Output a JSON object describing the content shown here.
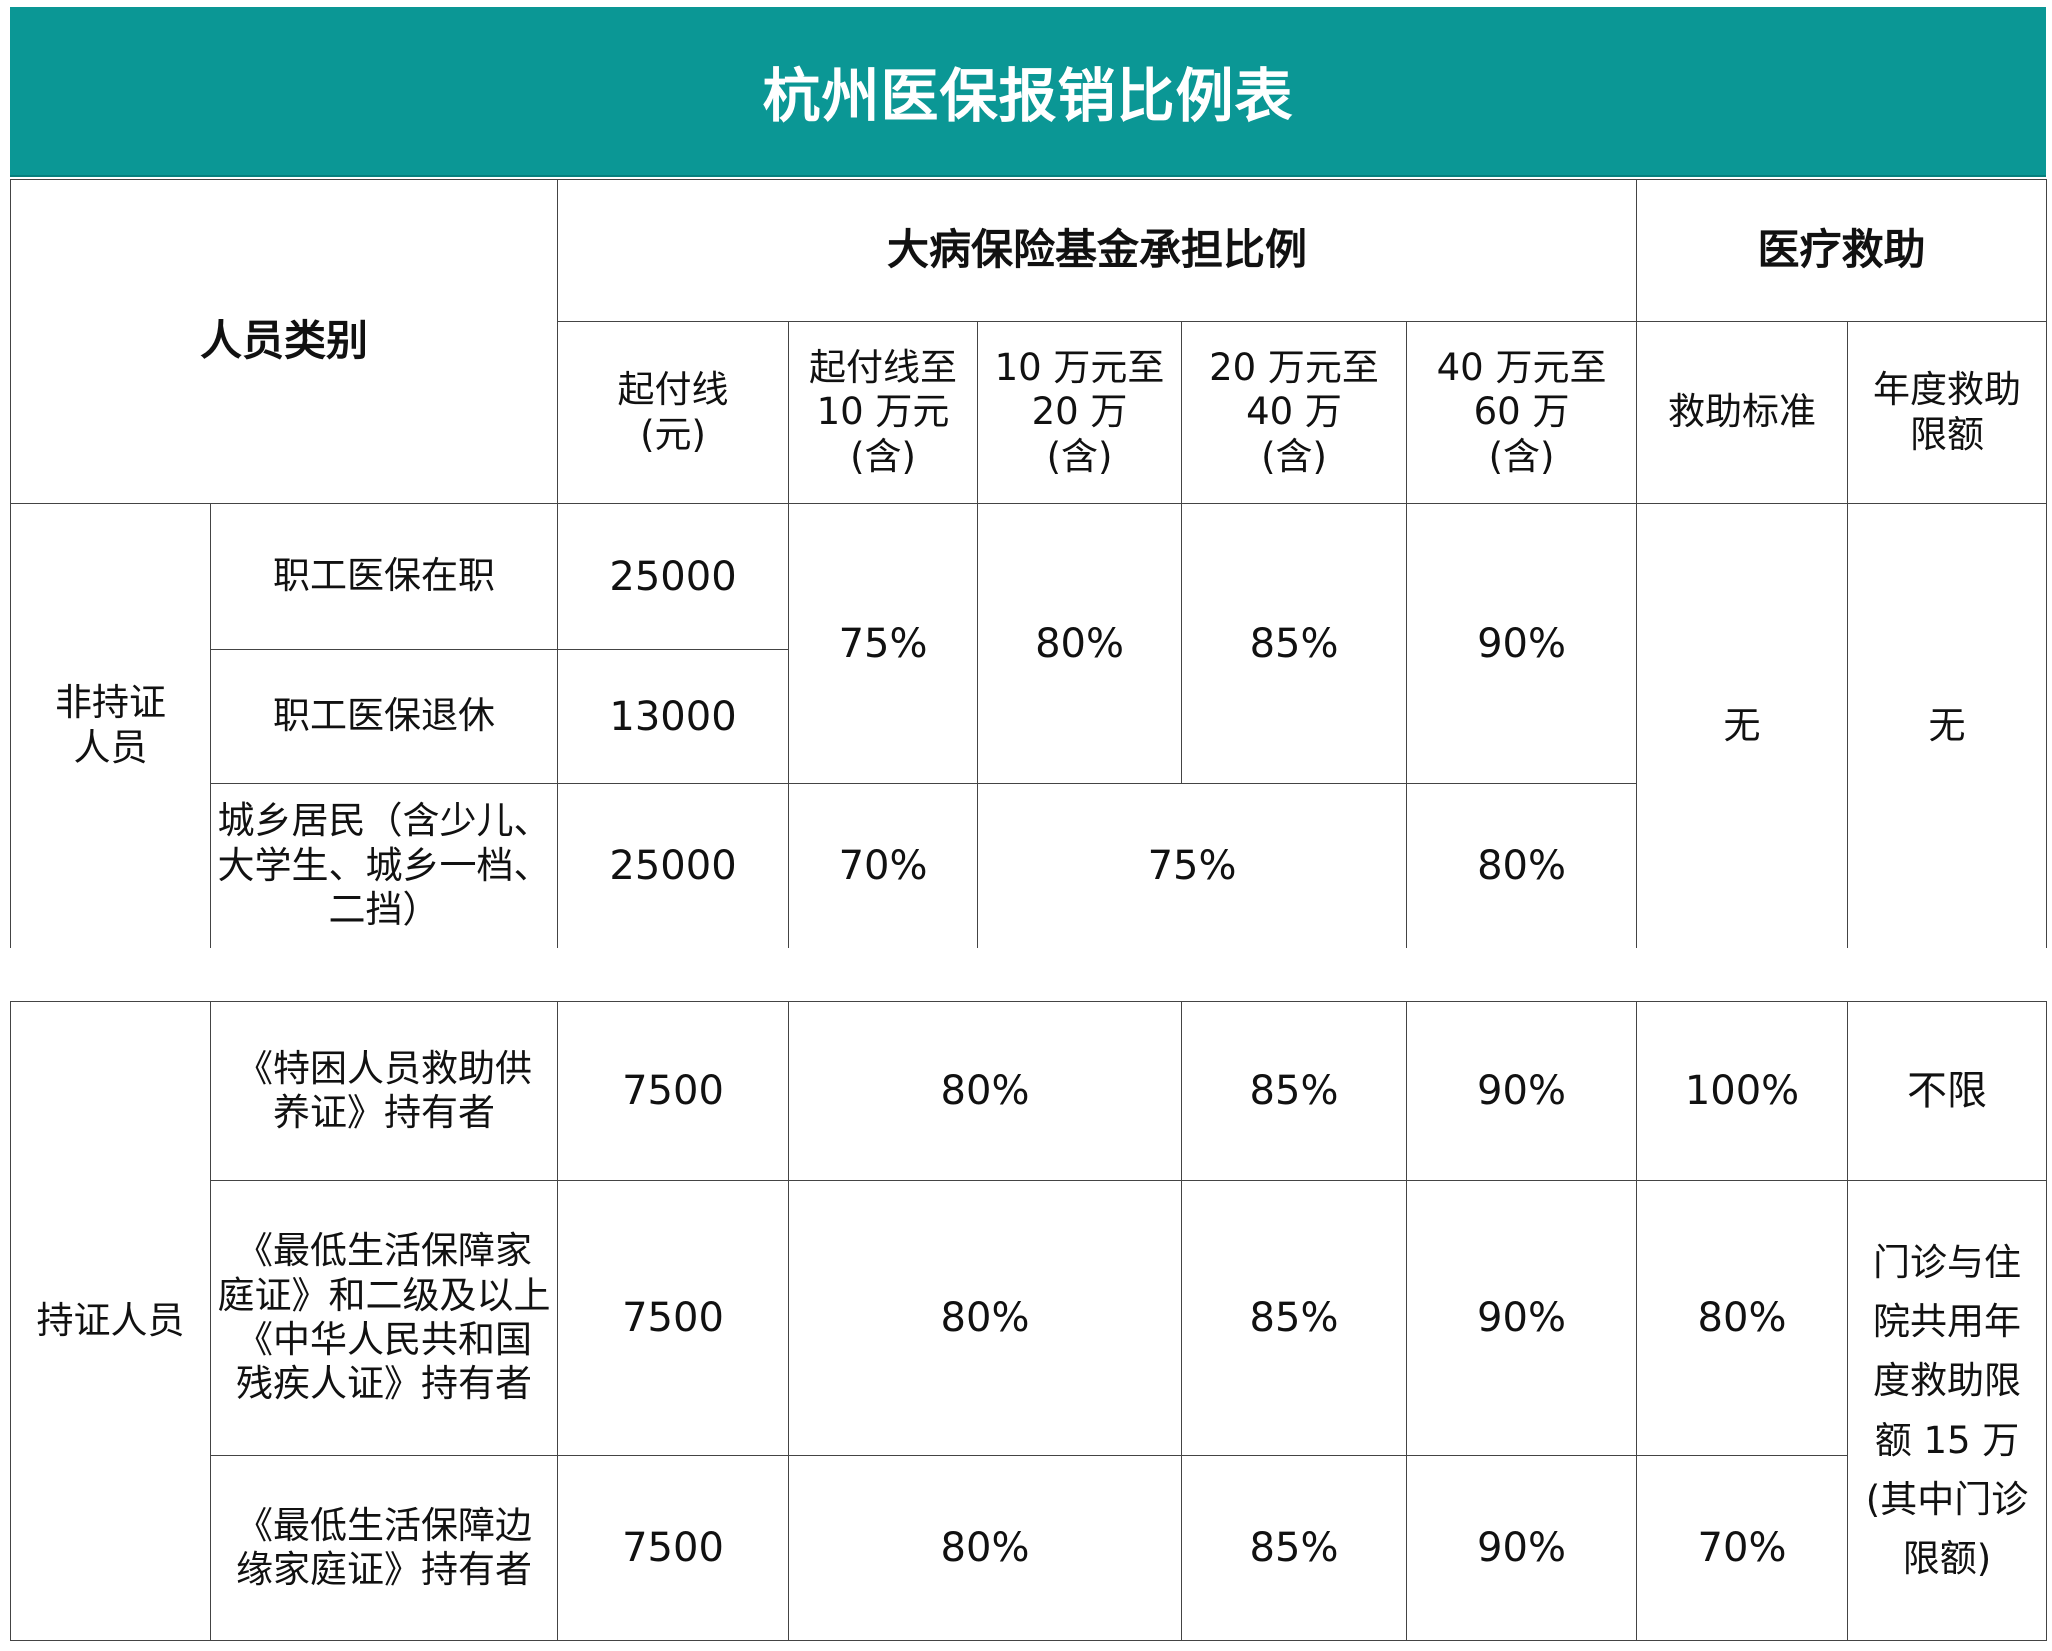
{
  "title": "杭州医保报销比例表",
  "header": {
    "category": "人员类别",
    "major_illness_group": "大病保险基金承担比例",
    "medical_aid_group": "医疗救助",
    "cols": {
      "deductible": [
        "起付线",
        "(元)"
      ],
      "band1": [
        "起付线至",
        "10 万元",
        "(含)"
      ],
      "band2": [
        "10 万元至",
        "20 万",
        "(含)"
      ],
      "band3": [
        "20 万元至",
        "40 万",
        "(含)"
      ],
      "band4": [
        "40 万元至",
        "60 万",
        "(含)"
      ],
      "aid_standard": "救助标准",
      "aid_limit": [
        "年度救助",
        "限额"
      ]
    }
  },
  "groups": {
    "non_certified": [
      "非持证",
      "人员"
    ],
    "certified": "持证人员"
  },
  "rows": {
    "r1": {
      "label": "职工医保在职",
      "deductible": "25000"
    },
    "r2": {
      "label": "职工医保退休",
      "deductible": "13000"
    },
    "merged_r1r2": {
      "band1": "75%",
      "band2": "80%",
      "band3": "85%",
      "band4": "90%"
    },
    "r3": {
      "label": [
        "城乡居民（含少儿、",
        "大学生、城乡一档、",
        "二挡）"
      ],
      "deductible": "25000",
      "band1": "70%",
      "band2_3": "75%",
      "band4": "80%"
    },
    "non_certified_aid": {
      "standard": "无",
      "limit": "无"
    },
    "r4": {
      "label": [
        "《特困人员救助供",
        "养证》持有者"
      ],
      "deductible": "7500",
      "band1_2": "80%",
      "band3": "85%",
      "band4": "90%",
      "aid_standard": "100%",
      "aid_limit": "不限"
    },
    "r5": {
      "label": [
        "《最低生活保障家",
        "庭证》和二级及以上",
        "《中华人民共和国",
        "残疾人证》持有者"
      ],
      "deductible": "7500",
      "band1_2": "80%",
      "band3": "85%",
      "band4": "90%",
      "aid_standard": "80%"
    },
    "r6": {
      "label": [
        "《最低生活保障边",
        "缘家庭证》持有者"
      ],
      "deductible": "7500",
      "band1_2": "80%",
      "band3": "85%",
      "band4": "90%",
      "aid_standard": "70%"
    },
    "r5r6_aid_limit": [
      "门诊与住",
      "院共用年",
      "度救助限",
      "额 15 万",
      "(其中门诊",
      "限额)"
    ]
  }
}
